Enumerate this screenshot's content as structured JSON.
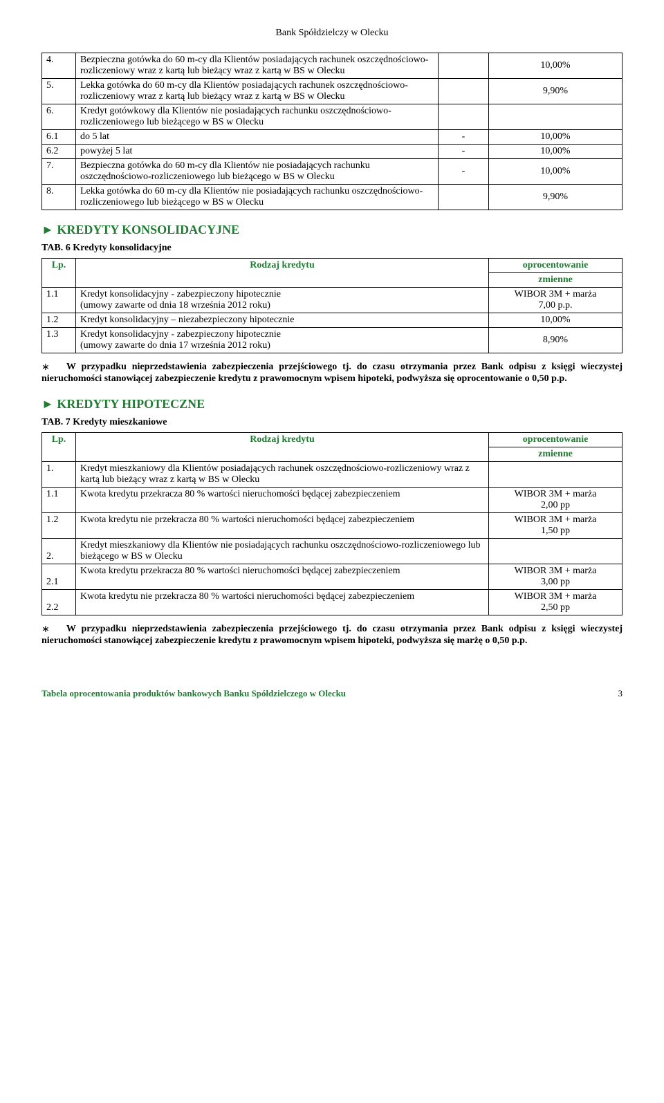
{
  "bank_header": "Bank Spółdzielczy w Olecku",
  "table5": {
    "rows": [
      {
        "num": "4.",
        "desc": "Bezpieczna gotówka do 60 m-cy dla Klientów posiadających rachunek oszczędnościowo-rozliczeniowy wraz z kartą lub bieżący wraz z kartą w BS w Olecku",
        "dash": "",
        "rate": "10,00%"
      },
      {
        "num": "5.",
        "desc": "Lekka gotówka do 60 m-cy  dla Klientów posiadających rachunek oszczędnościowo-rozliczeniowy wraz z kartą lub bieżący wraz z kartą w BS w Olecku",
        "dash": "",
        "rate": "9,90%"
      },
      {
        "num": "6.",
        "desc": "Kredyt gotówkowy dla Klientów nie posiadających rachunku oszczędnościowo-rozliczeniowego lub bieżącego w BS w Olecku",
        "dash": "",
        "rate": ""
      },
      {
        "num": "6.1",
        "desc": "do 5 lat",
        "dash": "-",
        "rate": "10,00%"
      },
      {
        "num": "6.2",
        "desc": "powyżej 5 lat",
        "dash": "-",
        "rate": "10,00%"
      },
      {
        "num": "7.",
        "desc": "Bezpieczna gotówka do 60 m-cy dla Klientów nie posiadających  rachunku oszczędnościowo-rozliczeniowego lub bieżącego w BS w Olecku",
        "dash": "-",
        "rate": "10,00%"
      },
      {
        "num": "8.",
        "desc": "Lekka gotówka do 60 m-cy  dla Klientów nie posiadających rachunku oszczędnościowo-rozliczeniowego lub bieżącego w BS w Olecku",
        "dash": "",
        "rate": "9,90%"
      }
    ]
  },
  "section_konsol": "► KREDYTY KONSOLIDACYJNE",
  "tab6_title": "TAB. 6 Kredyty konsolidacyjne",
  "tab6_headers": {
    "lp": "Lp.",
    "rodzaj": "Rodzaj kredytu",
    "oproc": "oprocentowanie",
    "zmienne": "zmienne"
  },
  "tab6_rows": [
    {
      "num": "1.1",
      "desc": "Kredyt konsolidacyjny - zabezpieczony hipotecznie\n(umowy zawarte od dnia 18 września 2012 roku)",
      "rate": "WIBOR 3M + marża\n7,00 p.p."
    },
    {
      "num": "1.2",
      "desc": "Kredyt konsolidacyjny – niezabezpieczony hipotecznie",
      "rate": "10,00%"
    },
    {
      "num": "1.3",
      "desc": "Kredyt konsolidacyjny - zabezpieczony hipotecznie\n(umowy zawarte do dnia 17 września 2012 roku)",
      "rate": "8,90%"
    }
  ],
  "note1": "W przypadku nieprzedstawienia zabezpieczenia przejściowego tj. do czasu otrzymania przez Bank odpisu z księgi wieczystej nieruchomości stanowiącej zabezpieczenie kredytu z prawomocnym wpisem hipoteki, podwyższa się oprocentowanie o 0,50 p.p.",
  "section_hipo": "► KREDYTY HIPOTECZNE",
  "tab7_title": "TAB. 7 Kredyty mieszkaniowe",
  "tab7_headers": {
    "lp": "Lp.",
    "rodzaj": "Rodzaj kredytu",
    "oproc": "oprocentowanie",
    "zmienne": "zmienne"
  },
  "tab7_rows": [
    {
      "num": "1.",
      "desc": "Kredyt mieszkaniowy dla Klientów posiadających rachunek oszczędnościowo-rozliczeniowy wraz z kartą lub bieżący wraz z kartą w BS w Olecku",
      "rate": ""
    },
    {
      "num": "1.1",
      "desc": "Kwota kredytu przekracza 80 % wartości nieruchomości będącej zabezpieczeniem",
      "rate": "WIBOR 3M + marża\n2,00 pp"
    },
    {
      "num": "1.2",
      "desc": "Kwota kredytu nie przekracza 80 % wartości nieruchomości będącej zabezpieczeniem",
      "rate": "WIBOR 3M + marża\n1,50 pp"
    },
    {
      "num": "2.",
      "desc": "Kredyt mieszkaniowy dla Klientów  nie posiadających rachunku oszczędnościowo-rozliczeniowego lub bieżącego w BS w Olecku",
      "rate": "",
      "numbottom": true
    },
    {
      "num": "2.1",
      "desc": "Kwota kredytu przekracza 80 % wartości nieruchomości będącej zabezpieczeniem",
      "rate": "WIBOR 3M + marża\n3,00 pp",
      "numbottom": true
    },
    {
      "num": "2.2",
      "desc": "Kwota kredytu nie przekracza 80 % wartości nieruchomości będącej zabezpieczeniem",
      "rate": "WIBOR 3M + marża\n2,50 pp",
      "numbottom": true
    }
  ],
  "note2": "W przypadku nieprzedstawienia zabezpieczenia przejściowego tj. do czasu otrzymania przez Bank odpisu z księgi wieczystej nieruchomości stanowiącej zabezpieczenie kredytu z prawomocnym wpisem hipoteki, podwyższa się marżę o 0,50 p.p.",
  "footer_text": "Tabela oprocentowania produktów bankowych Banku Spółdzielczego w Olecku",
  "page_number": "3",
  "asterisk": "∗"
}
